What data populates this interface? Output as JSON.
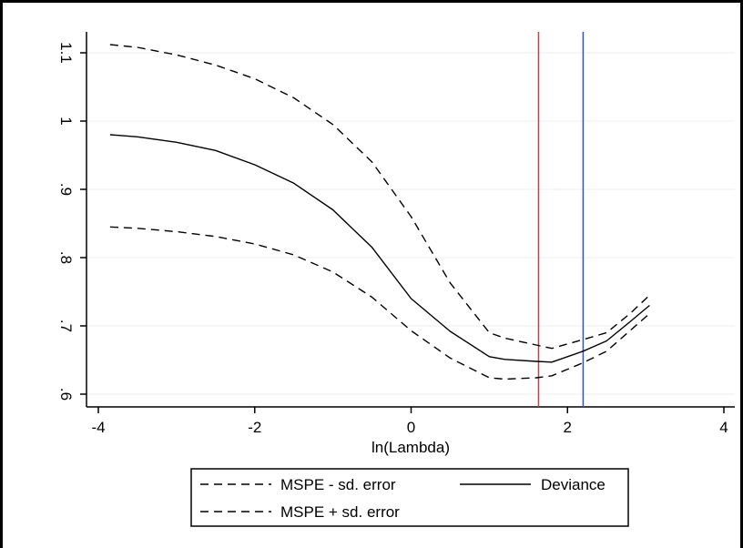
{
  "chart_data": {
    "type": "line",
    "title": "",
    "xlabel": "ln(Lambda)",
    "ylabel": "",
    "xlim": [
      -4,
      4
    ],
    "ylim": [
      0.6,
      1.1
    ],
    "xticks": [
      -4,
      -2,
      0,
      2,
      4
    ],
    "xtick_labels": [
      "-4",
      "-2",
      "0",
      "2",
      "4"
    ],
    "yticks": [
      0.6,
      0.7,
      0.8,
      0.9,
      1.0,
      1.1
    ],
    "ytick_labels": [
      ".6",
      ".7",
      ".8",
      ".9",
      "1",
      "1.1"
    ],
    "grid": "horizontal",
    "legend_position": "bottom",
    "colors": {
      "series": "#000000",
      "reference_line_1": "#e8303a",
      "reference_line_2": "#3a55b0",
      "grid": "#eeeeee"
    },
    "series": [
      {
        "name": "MSPE - sd. error",
        "style": "dashed",
        "points": [
          [
            -3.85,
            1.112
          ],
          [
            -3.5,
            1.108
          ],
          [
            -3.0,
            1.097
          ],
          [
            -2.5,
            1.082
          ],
          [
            -2.0,
            1.062
          ],
          [
            -1.5,
            1.034
          ],
          [
            -1.0,
            0.995
          ],
          [
            -0.5,
            0.94
          ],
          [
            0.0,
            0.86
          ],
          [
            0.5,
            0.763
          ],
          [
            1.0,
            0.69
          ],
          [
            1.2,
            0.682
          ],
          [
            1.6,
            0.672
          ],
          [
            1.8,
            0.667
          ],
          [
            2.2,
            0.68
          ],
          [
            2.5,
            0.69
          ],
          [
            2.8,
            0.718
          ],
          [
            3.05,
            0.745
          ]
        ]
      },
      {
        "name": "Deviance",
        "style": "solid",
        "points": [
          [
            -3.85,
            0.98
          ],
          [
            -3.5,
            0.977
          ],
          [
            -3.0,
            0.969
          ],
          [
            -2.5,
            0.957
          ],
          [
            -2.0,
            0.936
          ],
          [
            -1.5,
            0.909
          ],
          [
            -1.0,
            0.87
          ],
          [
            -0.5,
            0.815
          ],
          [
            0.0,
            0.74
          ],
          [
            0.5,
            0.692
          ],
          [
            1.0,
            0.655
          ],
          [
            1.2,
            0.651
          ],
          [
            1.6,
            0.648
          ],
          [
            1.8,
            0.647
          ],
          [
            2.2,
            0.663
          ],
          [
            2.5,
            0.678
          ],
          [
            2.8,
            0.706
          ],
          [
            3.05,
            0.73
          ]
        ]
      },
      {
        "name": "MSPE + sd. error",
        "style": "dashed",
        "points": [
          [
            -3.85,
            0.845
          ],
          [
            -3.5,
            0.843
          ],
          [
            -3.0,
            0.838
          ],
          [
            -2.5,
            0.831
          ],
          [
            -2.0,
            0.82
          ],
          [
            -1.5,
            0.804
          ],
          [
            -1.0,
            0.779
          ],
          [
            -0.5,
            0.742
          ],
          [
            0.0,
            0.693
          ],
          [
            0.5,
            0.653
          ],
          [
            1.0,
            0.624
          ],
          [
            1.2,
            0.622
          ],
          [
            1.6,
            0.624
          ],
          [
            1.8,
            0.627
          ],
          [
            2.2,
            0.646
          ],
          [
            2.5,
            0.663
          ],
          [
            2.8,
            0.693
          ],
          [
            3.05,
            0.718
          ]
        ]
      }
    ],
    "reference_lines": [
      {
        "axis": "x",
        "value": 1.63
      },
      {
        "axis": "x",
        "value": 2.2
      }
    ],
    "legend": {
      "entries": [
        {
          "label": "MSPE - sd. error",
          "style": "dashed"
        },
        {
          "label": "Deviance",
          "style": "solid"
        },
        {
          "label": "MSPE + sd. error",
          "style": "dashed"
        }
      ]
    }
  }
}
